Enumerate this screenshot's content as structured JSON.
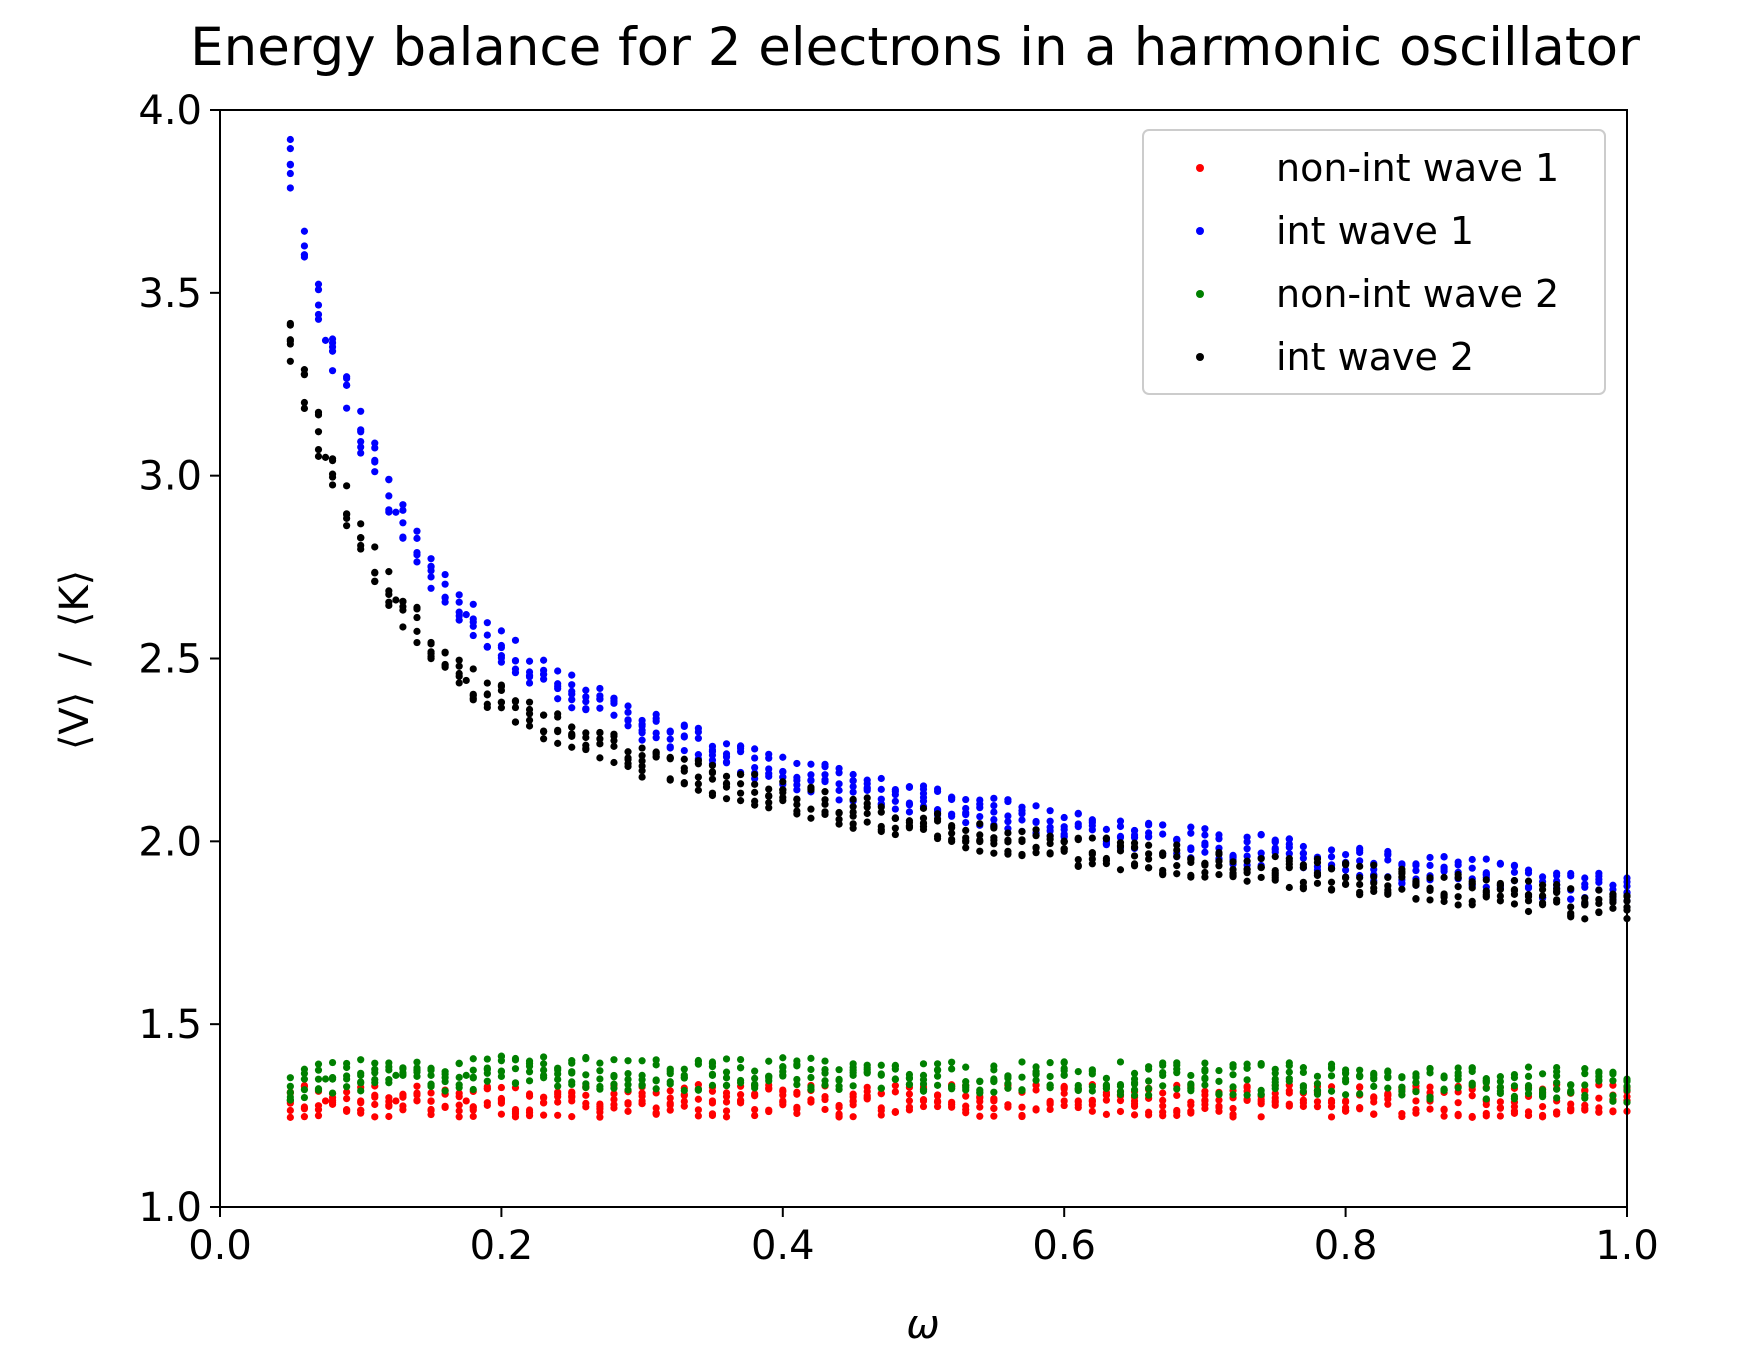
{
  "chart_data": {
    "type": "scatter",
    "title": "Energy balance for 2 electrons in a harmonic oscillator",
    "xlabel": "ω",
    "ylabel": "⟨V⟩  /  ⟨K⟩",
    "xlim": [
      0.0,
      1.0
    ],
    "ylim": [
      1.0,
      4.0
    ],
    "x_ticks": [
      "0.0",
      "0.2",
      "0.4",
      "0.6",
      "0.8",
      "1.0"
    ],
    "y_ticks": [
      "1.0",
      "1.5",
      "2.0",
      "2.5",
      "3.0",
      "3.5",
      "4.0"
    ],
    "grid": false,
    "legend_position": "top-right",
    "x": [
      0.05,
      0.075,
      0.1,
      0.125,
      0.15,
      0.175,
      0.2,
      0.25,
      0.3,
      0.35,
      0.4,
      0.45,
      0.5,
      0.55,
      0.6,
      0.65,
      0.7,
      0.75,
      0.8,
      0.85,
      0.9,
      0.95,
      1.0
    ],
    "series": [
      {
        "name": "non-int wave 1",
        "color": "#ff0000",
        "values": [
          1.29,
          1.29,
          1.29,
          1.29,
          1.29,
          1.29,
          1.29,
          1.29,
          1.29,
          1.29,
          1.29,
          1.29,
          1.29,
          1.29,
          1.29,
          1.29,
          1.29,
          1.29,
          1.29,
          1.29,
          1.29,
          1.29,
          1.29
        ]
      },
      {
        "name": "int wave 1",
        "color": "#0000ff",
        "values": [
          3.85,
          3.37,
          3.12,
          2.9,
          2.74,
          2.62,
          2.53,
          2.41,
          2.32,
          2.25,
          2.19,
          2.15,
          2.11,
          2.08,
          2.04,
          2.01,
          1.99,
          1.97,
          1.94,
          1.92,
          1.91,
          1.88,
          1.86
        ]
      },
      {
        "name": "non-int wave 2",
        "color": "#008000",
        "values": [
          1.33,
          1.35,
          1.36,
          1.36,
          1.36,
          1.36,
          1.37,
          1.37,
          1.36,
          1.36,
          1.37,
          1.36,
          1.36,
          1.35,
          1.36,
          1.35,
          1.35,
          1.35,
          1.35,
          1.34,
          1.34,
          1.34,
          1.33
        ]
      },
      {
        "name": "int wave 2",
        "color": "#000000",
        "values": [
          3.36,
          3.05,
          2.83,
          2.66,
          2.54,
          2.44,
          2.38,
          2.29,
          2.22,
          2.17,
          2.12,
          2.08,
          2.05,
          2.01,
          1.98,
          1.96,
          1.94,
          1.92,
          1.9,
          1.88,
          1.86,
          1.84,
          1.82
        ]
      }
    ]
  }
}
